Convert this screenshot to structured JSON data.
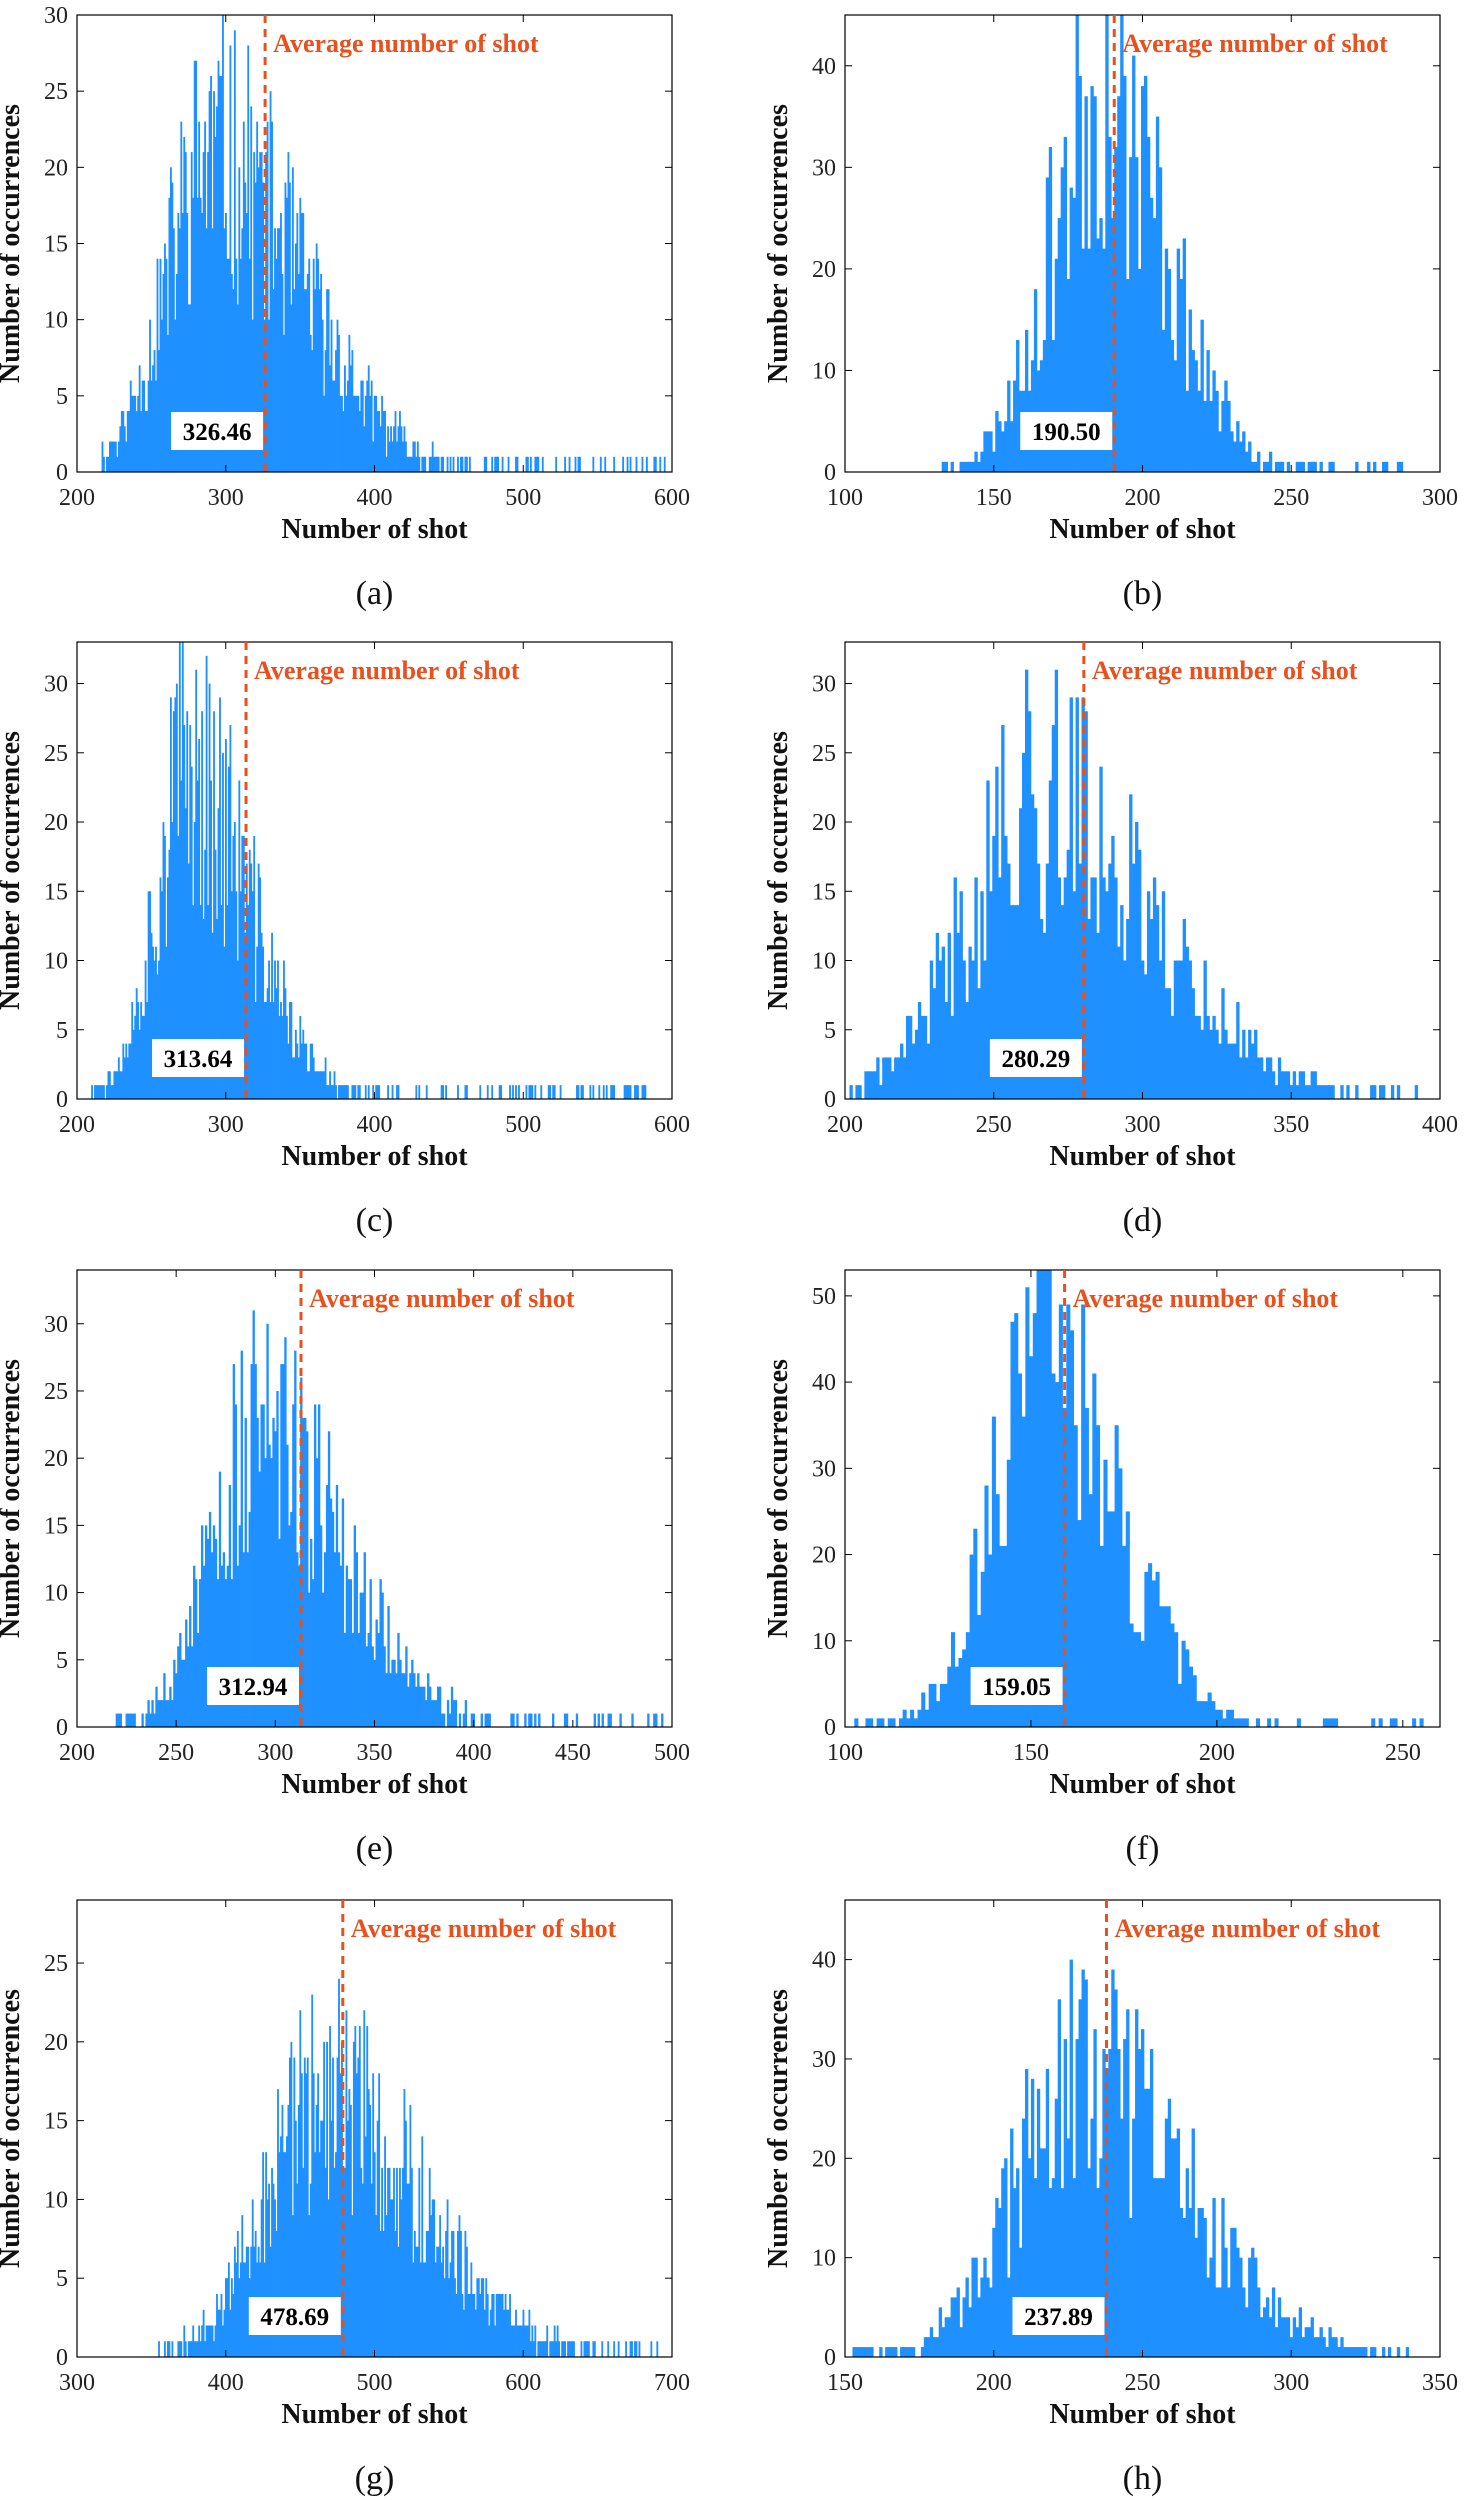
{
  "colors": {
    "bar": "#1E90FF",
    "average_line": "#E8501E",
    "axis": "#000000"
  },
  "chart_data": [
    {
      "type": "bar",
      "panel": "(a)",
      "xlabel": "Number of shot",
      "ylabel": "Number of occurrences",
      "xlim": [
        200,
        600
      ],
      "ylim": [
        0,
        30
      ],
      "xticks": [
        200,
        300,
        400,
        500,
        600
      ],
      "yticks": [
        0,
        5,
        10,
        15,
        20,
        25,
        30
      ],
      "mean": 326.46,
      "mean_label": "326.46",
      "annotation": "Average number of shot",
      "dist": {
        "start": 215,
        "end": 595,
        "mode": 290,
        "peak": 21,
        "sl": 30,
        "sr": 60,
        "seed": 11
      }
    },
    {
      "type": "bar",
      "panel": "(b)",
      "xlabel": "Number of shot",
      "ylabel": "Number of occurrences",
      "xlim": [
        100,
        300
      ],
      "ylim": [
        0,
        45
      ],
      "xticks": [
        100,
        150,
        200,
        250,
        300
      ],
      "yticks": [
        0,
        10,
        20,
        30,
        40
      ],
      "mean": 190.5,
      "mean_label": "190.50",
      "annotation": "Average number of shot",
      "dist": {
        "start": 133,
        "end": 288,
        "mode": 186,
        "peak": 37,
        "sl": 17,
        "sr": 22,
        "seed": 23
      }
    },
    {
      "type": "bar",
      "panel": "(c)",
      "xlabel": "Number of shot",
      "ylabel": "Number of occurrences",
      "xlim": [
        200,
        600
      ],
      "ylim": [
        0,
        33
      ],
      "xticks": [
        200,
        300,
        400,
        500,
        600
      ],
      "yticks": [
        0,
        5,
        10,
        15,
        20,
        25,
        30
      ],
      "mean": 313.64,
      "mean_label": "313.64",
      "annotation": "Average number of shot",
      "dist": {
        "start": 210,
        "end": 585,
        "mode": 275,
        "peak": 24,
        "sl": 22,
        "sr": 40,
        "seed": 37
      }
    },
    {
      "type": "bar",
      "panel": "(d)",
      "xlabel": "Number of shot",
      "ylabel": "Number of occurrences",
      "xlim": [
        200,
        400
      ],
      "ylim": [
        0,
        33
      ],
      "xticks": [
        200,
        250,
        300,
        350,
        400
      ],
      "yticks": [
        0,
        5,
        10,
        15,
        20,
        25,
        30
      ],
      "mean": 280.29,
      "mean_label": "280.29",
      "annotation": "Average number of shot",
      "dist": {
        "start": 202,
        "end": 397,
        "mode": 265,
        "peak": 22,
        "sl": 24,
        "sr": 38,
        "seed": 41
      }
    },
    {
      "type": "bar",
      "panel": "(e)",
      "xlabel": "Number of shot",
      "ylabel": "Number of occurrences",
      "xlim": [
        200,
        500
      ],
      "ylim": [
        0,
        34
      ],
      "xticks": [
        200,
        250,
        300,
        350,
        400,
        450,
        500
      ],
      "yticks": [
        0,
        5,
        10,
        15,
        20,
        25,
        30
      ],
      "mean": 312.94,
      "mean_label": "312.94",
      "annotation": "Average number of shot",
      "dist": {
        "start": 220,
        "end": 498,
        "mode": 292,
        "peak": 22,
        "sl": 24,
        "sr": 42,
        "seed": 53
      }
    },
    {
      "type": "bar",
      "panel": "(f)",
      "xlabel": "Number of shot",
      "ylabel": "Number of occurrences",
      "xlim": [
        100,
        260
      ],
      "ylim": [
        0,
        53
      ],
      "xticks": [
        100,
        150,
        200,
        250
      ],
      "yticks": [
        0,
        10,
        20,
        30,
        40,
        50
      ],
      "mean": 159.05,
      "mean_label": "159.05",
      "annotation": "Average number of shot",
      "dist": {
        "start": 103,
        "end": 255,
        "mode": 153,
        "peak": 42,
        "sl": 14,
        "sr": 20,
        "seed": 67
      }
    },
    {
      "type": "bar",
      "panel": "(g)",
      "xlabel": "Number of shot",
      "ylabel": "Number of occurrences",
      "xlim": [
        300,
        700
      ],
      "ylim": [
        0,
        29
      ],
      "xticks": [
        300,
        400,
        500,
        600,
        700
      ],
      "yticks": [
        0,
        5,
        10,
        15,
        20,
        25
      ],
      "mean": 478.69,
      "mean_label": "478.69",
      "annotation": "Average number of shot",
      "dist": {
        "start": 355,
        "end": 695,
        "mode": 465,
        "peak": 17,
        "sl": 38,
        "sr": 65,
        "seed": 79
      }
    },
    {
      "type": "bar",
      "panel": "(h)",
      "xlabel": "Number of shot",
      "ylabel": "Number of occurrences",
      "xlim": [
        150,
        350
      ],
      "ylim": [
        0,
        46
      ],
      "xticks": [
        150,
        200,
        250,
        300,
        350
      ],
      "yticks": [
        0,
        10,
        20,
        30,
        40
      ],
      "mean": 237.89,
      "mean_label": "237.89",
      "annotation": "Average number of shot",
      "dist": {
        "start": 153,
        "end": 345,
        "mode": 230,
        "peak": 28,
        "sl": 23,
        "sr": 35,
        "seed": 97
      }
    }
  ]
}
